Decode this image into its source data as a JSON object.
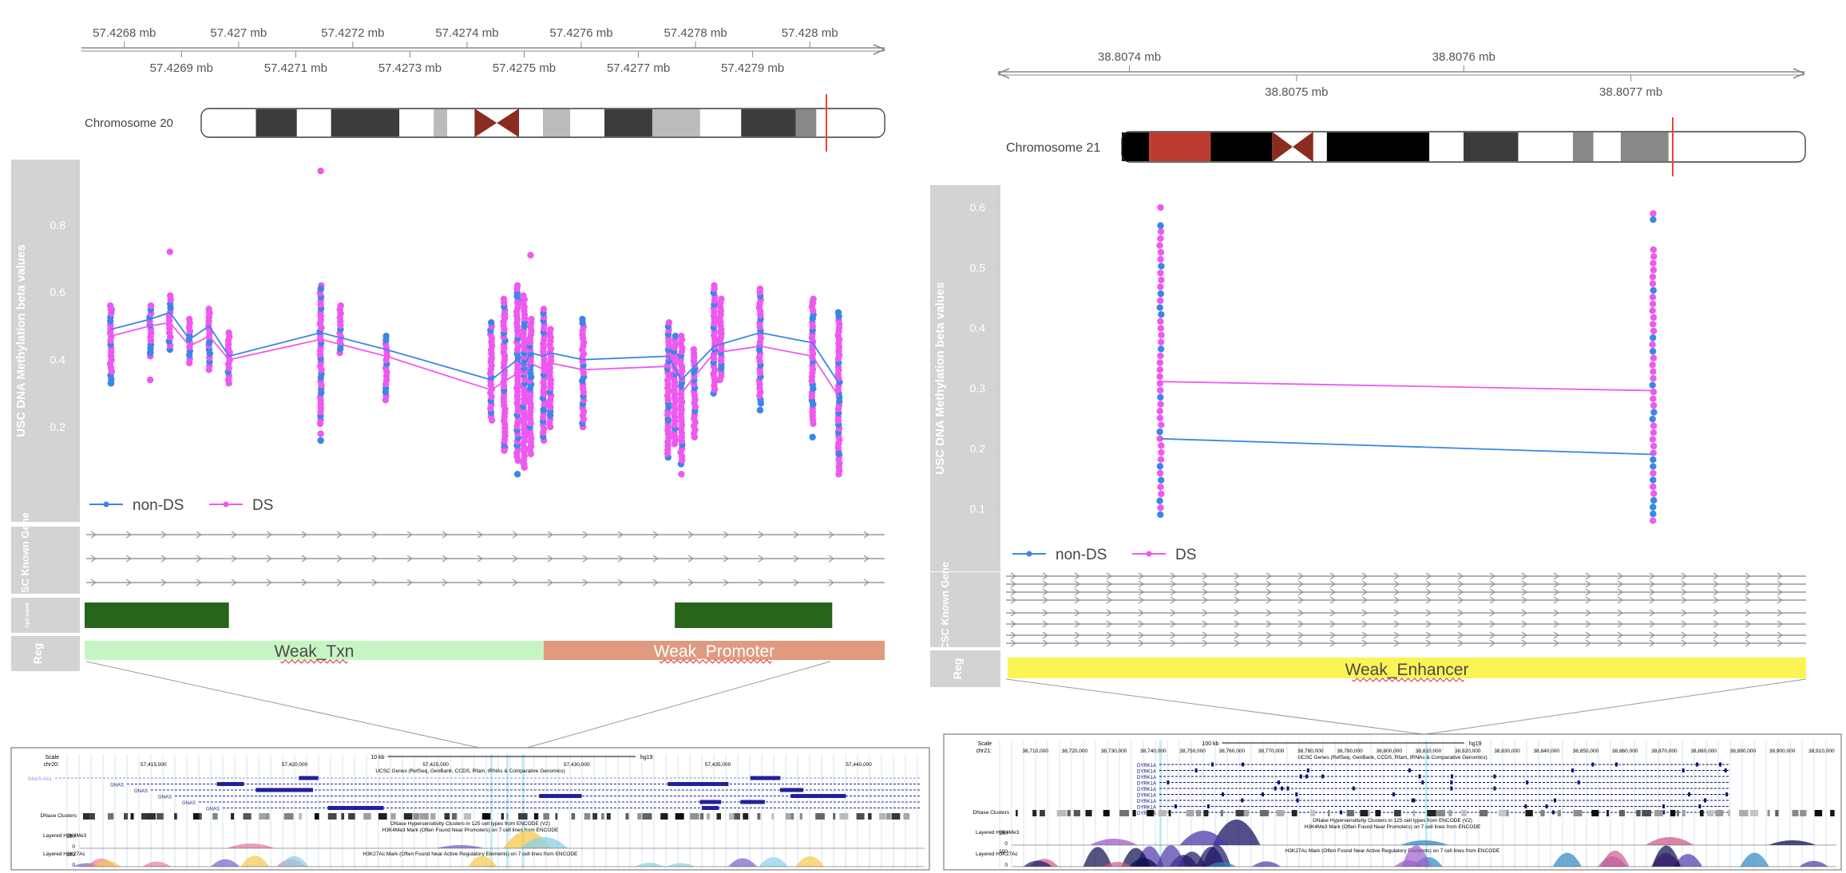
{
  "colors": {
    "non_ds": "#3b86e6",
    "ds": "#ee59ee",
    "track_bg": "#d3d3d3",
    "track_label": "#ffffff",
    "cpg": "#28641c",
    "weak_txn": "#c6f5c4",
    "weak_promoter": "#df9a80",
    "weak_enhancer": "#faf455",
    "chrom_marker": "#e8443a"
  },
  "chart_data": [
    {
      "type": "scatter",
      "panel": "left",
      "chromosome_label": "Chromosome 20",
      "ylabel": "USC DNA Methylation beta values",
      "y_ticks": [
        "0.2",
        "0.4",
        "0.6",
        "0.8"
      ],
      "ylim": [
        0.07,
        0.97
      ],
      "xlim": [
        57.4267,
        57.4281
      ],
      "axis_ticks_top": [
        {
          "x": 57.4268,
          "label": "57.4268 mb"
        },
        {
          "x": 57.427,
          "label": "57.427 mb"
        },
        {
          "x": 57.4272,
          "label": "57.4272 mb"
        },
        {
          "x": 57.4274,
          "label": "57.4274 mb"
        },
        {
          "x": 57.4276,
          "label": "57.4276 mb"
        },
        {
          "x": 57.4278,
          "label": "57.4278 mb"
        },
        {
          "x": 57.428,
          "label": "57.428 mb"
        }
      ],
      "axis_ticks_bottom": [
        {
          "x": 57.4269,
          "label": "57.4269 mb"
        },
        {
          "x": 57.4271,
          "label": "57.4271 mb"
        },
        {
          "x": 57.4273,
          "label": "57.4273 mb"
        },
        {
          "x": 57.4275,
          "label": "57.4275 mb"
        },
        {
          "x": 57.4277,
          "label": "57.4277 mb"
        },
        {
          "x": 57.4279,
          "label": "57.4279 mb"
        }
      ],
      "legend": [
        {
          "name": "non-DS",
          "color_key": "non_ds"
        },
        {
          "name": "DS",
          "color_key": "ds"
        }
      ],
      "tracks": {
        "gene_label": "UCSC Known Gene",
        "cpg_label": "CpG island",
        "reg_label": "Reg",
        "regions": [
          {
            "name": "Weak_Txn",
            "start": 57.42681,
            "end": 57.42751,
            "color_key": "weak_txn"
          },
          {
            "name": "Weak_Promoter",
            "start": 57.42751,
            "end": 57.42803,
            "color_key": "weak_promoter"
          }
        ],
        "cpg_islands": [
          {
            "start": 57.42681,
            "end": 57.42703
          },
          {
            "start": 57.42771,
            "end": 57.42795
          }
        ]
      },
      "series": [
        {
          "name": "non-DS",
          "x": [
            57.42685,
            57.42691,
            57.42694,
            57.42697,
            57.427,
            57.42703,
            57.42717,
            57.42727,
            57.42743,
            57.42747,
            57.42748,
            57.42749,
            57.42751,
            57.42752,
            57.42757,
            57.4277,
            57.42772,
            57.42774,
            57.42777,
            57.42784,
            57.42792,
            57.42796
          ],
          "y": [
            0.49,
            0.52,
            0.54,
            0.46,
            0.5,
            0.41,
            0.48,
            0.43,
            0.34,
            0.4,
            0.38,
            0.42,
            0.41,
            0.42,
            0.4,
            0.41,
            0.34,
            0.38,
            0.44,
            0.48,
            0.45,
            0.33
          ]
        },
        {
          "name": "DS",
          "x": [
            57.42685,
            57.42691,
            57.42694,
            57.42697,
            57.427,
            57.42703,
            57.42717,
            57.42727,
            57.42743,
            57.42747,
            57.42748,
            57.42749,
            57.42751,
            57.42752,
            57.42757,
            57.4277,
            57.42772,
            57.42774,
            57.42777,
            57.42784,
            57.42792,
            57.42796
          ],
          "y": [
            0.47,
            0.5,
            0.51,
            0.44,
            0.47,
            0.4,
            0.46,
            0.41,
            0.31,
            0.36,
            0.34,
            0.39,
            0.37,
            0.39,
            0.37,
            0.38,
            0.3,
            0.35,
            0.42,
            0.44,
            0.41,
            0.29
          ]
        }
      ],
      "scatter_groups": [
        {
          "x": 57.42685,
          "min": 0.33,
          "max": 0.56,
          "extra": [
            0.55,
            0.33
          ]
        },
        {
          "x": 57.42691,
          "min": 0.41,
          "max": 0.56,
          "extra": [
            0.34,
            0.42
          ]
        },
        {
          "x": 57.42694,
          "min": 0.43,
          "max": 0.59,
          "extra": [
            0.72
          ]
        },
        {
          "x": 57.42697,
          "min": 0.39,
          "max": 0.52,
          "extra": []
        },
        {
          "x": 57.427,
          "min": 0.37,
          "max": 0.55,
          "extra": [
            0.54,
            0.45
          ]
        },
        {
          "x": 57.42703,
          "min": 0.34,
          "max": 0.48,
          "extra": [
            0.33
          ]
        },
        {
          "x": 57.42717,
          "min": 0.21,
          "max": 0.62,
          "extra": [
            0.96,
            0.16,
            0.18,
            0.61
          ]
        },
        {
          "x": 57.4272,
          "min": 0.42,
          "max": 0.56,
          "extra": []
        },
        {
          "x": 57.42727,
          "min": 0.28,
          "max": 0.47,
          "extra": []
        },
        {
          "x": 57.42743,
          "min": 0.22,
          "max": 0.51,
          "extra": [
            0.4
          ]
        },
        {
          "x": 57.42745,
          "min": 0.14,
          "max": 0.58,
          "extra": [
            0.53,
            0.14,
            0.13
          ]
        },
        {
          "x": 57.42747,
          "min": 0.1,
          "max": 0.61,
          "extra": [
            0.62,
            0.06,
            0.57
          ]
        },
        {
          "x": 57.42748,
          "min": 0.08,
          "max": 0.59,
          "extra": [
            0.09
          ]
        },
        {
          "x": 57.42749,
          "min": 0.12,
          "max": 0.52,
          "extra": [
            0.71
          ]
        },
        {
          "x": 57.42751,
          "min": 0.16,
          "max": 0.55,
          "extra": [
            0.3,
            0.25
          ]
        },
        {
          "x": 57.42752,
          "min": 0.2,
          "max": 0.49,
          "extra": [
            0.26
          ]
        },
        {
          "x": 57.42757,
          "min": 0.2,
          "max": 0.52,
          "extra": []
        },
        {
          "x": 57.4277,
          "min": 0.11,
          "max": 0.51,
          "extra": [
            0.2,
            0.22
          ]
        },
        {
          "x": 57.42771,
          "min": 0.15,
          "max": 0.47,
          "extra": []
        },
        {
          "x": 57.42772,
          "min": 0.09,
          "max": 0.47,
          "extra": [
            0.06
          ]
        },
        {
          "x": 57.42774,
          "min": 0.18,
          "max": 0.43,
          "extra": [
            0.17
          ]
        },
        {
          "x": 57.42777,
          "min": 0.3,
          "max": 0.61,
          "extra": [
            0.62
          ]
        },
        {
          "x": 57.42778,
          "min": 0.34,
          "max": 0.58,
          "extra": [
            0.48
          ]
        },
        {
          "x": 57.42784,
          "min": 0.27,
          "max": 0.6,
          "extra": [
            0.61,
            0.25
          ]
        },
        {
          "x": 57.42792,
          "min": 0.21,
          "max": 0.58,
          "extra": [
            0.57,
            0.17
          ]
        },
        {
          "x": 57.42796,
          "min": 0.07,
          "max": 0.54,
          "extra": [
            0.06,
            0.12
          ]
        }
      ]
    },
    {
      "type": "scatter",
      "panel": "right",
      "chromosome_label": "Chromosome 21",
      "ylabel": "USC DNA Methylation beta values",
      "y_ticks": [
        "0.1",
        "0.2",
        "0.3",
        "0.4",
        "0.5",
        "0.6"
      ],
      "ylim": [
        0.07,
        0.62
      ],
      "xlim": [
        38.80733,
        38.80779
      ],
      "axis_ticks_top": [
        {
          "x": 38.8074,
          "label": "38.8074 mb"
        },
        {
          "x": 38.8076,
          "label": "38.8076 mb"
        }
      ],
      "axis_ticks_bottom": [
        {
          "x": 38.8075,
          "label": "38.8075 mb"
        },
        {
          "x": 38.8077,
          "label": "38.8077 mb"
        }
      ],
      "legend": [
        {
          "name": "non-DS",
          "color_key": "non_ds"
        },
        {
          "name": "DS",
          "color_key": "ds"
        }
      ],
      "tracks": {
        "gene_label": "UCSC Known Gene",
        "reg_label": "Reg",
        "regions": [
          {
            "name": "Weak_Enhancer",
            "start": 38.80733,
            "end": 38.8078,
            "color_key": "weak_enhancer"
          }
        ]
      },
      "series": [
        {
          "name": "non-DS",
          "x": [
            38.80742,
            38.80771
          ],
          "y": [
            0.216,
            0.19
          ]
        },
        {
          "name": "DS",
          "x": [
            38.80742,
            38.80771
          ],
          "y": [
            0.311,
            0.296
          ]
        }
      ],
      "scatter_groups": [
        {
          "x": 38.80742,
          "min": 0.09,
          "max": 0.56,
          "extra": [
            0.6,
            0.57
          ]
        },
        {
          "x": 38.80771,
          "min": 0.08,
          "max": 0.53,
          "extra": [
            0.59,
            0.58
          ]
        }
      ]
    }
  ],
  "screenshots": {
    "left": {
      "scale_label": "10 kb",
      "assembly": "hg19",
      "chrom": "chr20:",
      "coords": [
        "57,415,000",
        "57,420,000",
        "57,425,000",
        "57,430,000",
        "57,435,000",
        "57,440,000"
      ],
      "genes_title": "UCSC Genes (RefSeq, GenBank, CCDS, Rfam, tRNAs & Comparative Genomics)",
      "gene_names": [
        "GNAS-AS1",
        "GNAS",
        "GNAS",
        "GNAS",
        "GNAS",
        "GNAS"
      ],
      "dnase_label": "DNase Clusters",
      "dnase_title": "DNase Hypersensitivity Clusters in 125 cell types from ENCODE (V2)",
      "h3k4me3_label": "Layered H3K4Me3",
      "h3k4me3_title": "H3K4Me3 Mark (Often Found Near Promoters) on 7 cell lines from ENCODE",
      "h3k27ac_label": "Layered H3K27Ac",
      "h3k27ac_title": "H3K27Ac Mark (Often Found Near Active Regulatory Elements) on 7 cell lines from ENCODE",
      "scale_ticks": [
        "150",
        "0",
        "100",
        "0"
      ]
    },
    "right": {
      "scale_label": "100 kb",
      "assembly": "hg19",
      "chrom": "chr21:",
      "coords": [
        "38,710,000",
        "38,720,000",
        "38,730,000",
        "38,740,000",
        "38,750,000",
        "38,760,000",
        "38,770,000",
        "38,780,000",
        "38,790,000",
        "38,800,000",
        "38,810,000",
        "38,820,000",
        "38,830,000",
        "38,840,000",
        "38,850,000",
        "38,860,000",
        "38,870,000",
        "38,880,000",
        "38,890,000",
        "38,900,000",
        "38,910,000"
      ],
      "genes_title": "UCSC Genes (RefSeq, GenBank, CCDS, Rfam, tRNAs & Comparative Genomics)",
      "gene_names": [
        "DYRK1A",
        "DYRK1A",
        "DYRK1A",
        "DYRK1A",
        "DYRK1A",
        "DYRK1A",
        "DYRK1A",
        "DYRK1A",
        "DYRK1A"
      ],
      "dnase_label": "DNase Clusters",
      "dnase_title": "DNase Hypersensitivity Clusters in 125 cell types from ENCODE (V2)",
      "h3k4me3_label": "Layered H3K4Me3",
      "h3k4me3_title": "H3K4Me3 Mark (Often Found Near Promoters) on 7 cell lines from ENCODE",
      "h3k27ac_label": "Layered H3K27Ac",
      "h3k27ac_title": "H3K27Ac Mark (Often Found Near Active Regulatory Elements) on 7 cell lines from ENCODE",
      "scale_ticks": [
        "150",
        "0",
        "100",
        "0"
      ]
    }
  }
}
